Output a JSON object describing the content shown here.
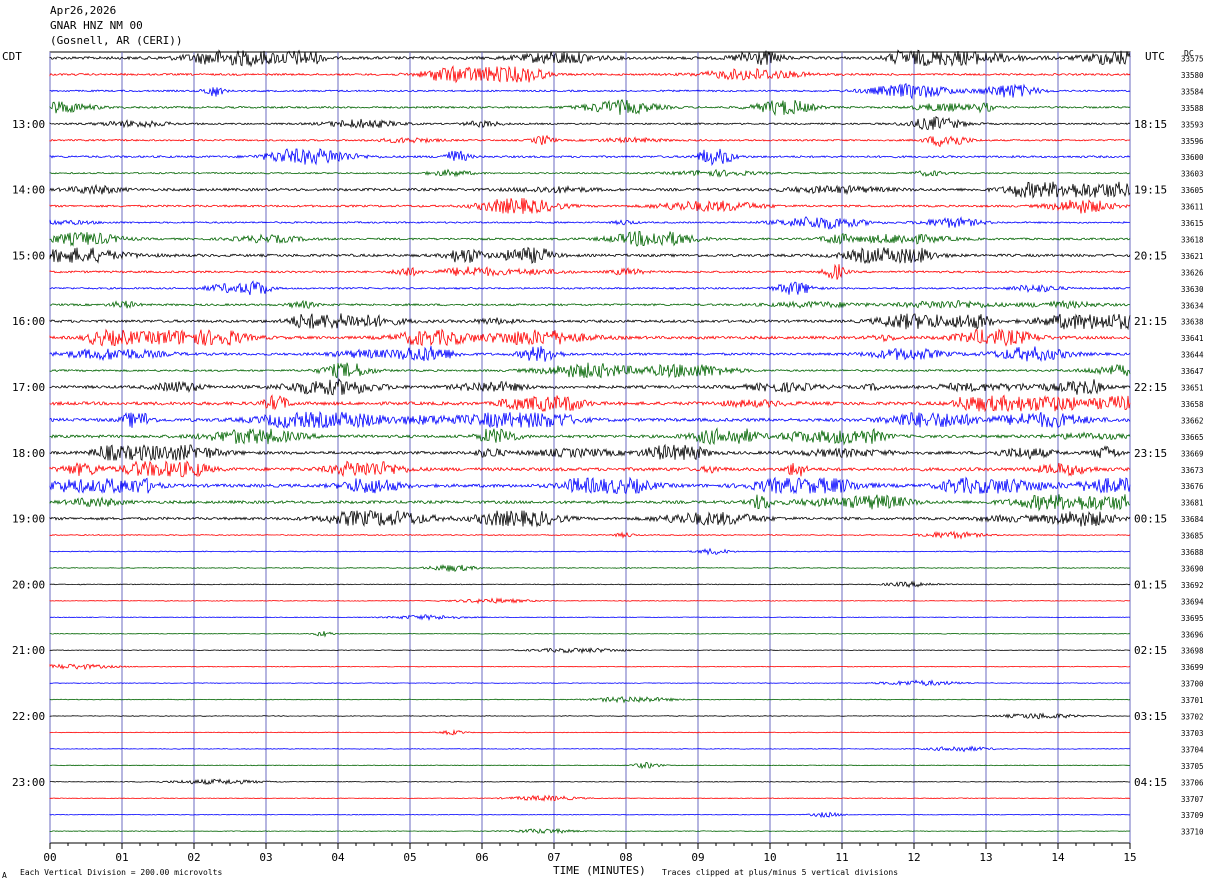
{
  "header": {
    "date": "Apr26,2026",
    "station": "GNAR HNZ NM 00",
    "location": "(Gosnell, AR (CERI))"
  },
  "left_label": "CDT",
  "right_label": "UTC",
  "right_top_label": "DC",
  "footer": {
    "scale": "Each Vertical Division =  200.00 microvolts",
    "xlabel": "TIME (MINUTES)",
    "clip": "Traces clipped at plus/minus 5 vertical divisions",
    "corner": "A"
  },
  "chart_data": {
    "type": "line",
    "xlabel": "TIME (MINUTES)",
    "xlim": [
      0,
      15
    ],
    "x_ticks": [
      "00",
      "01",
      "02",
      "03",
      "04",
      "05",
      "06",
      "07",
      "08",
      "09",
      "10",
      "11",
      "12",
      "13",
      "14",
      "15"
    ],
    "trace_colors": [
      "#000000",
      "#ff0000",
      "#0000ff",
      "#006400"
    ],
    "left_hours": [
      {
        "row": 4,
        "label": "13:00"
      },
      {
        "row": 8,
        "label": "14:00"
      },
      {
        "row": 12,
        "label": "15:00"
      },
      {
        "row": 16,
        "label": "16:00"
      },
      {
        "row": 20,
        "label": "17:00"
      },
      {
        "row": 24,
        "label": "18:00"
      },
      {
        "row": 28,
        "label": "19:00"
      },
      {
        "row": 32,
        "label": "20:00"
      },
      {
        "row": 36,
        "label": "21:00"
      },
      {
        "row": 40,
        "label": "22:00"
      },
      {
        "row": 44,
        "label": "23:00"
      }
    ],
    "right_hours": [
      {
        "row": 4,
        "label": "18:15"
      },
      {
        "row": 8,
        "label": "19:15"
      },
      {
        "row": 12,
        "label": "20:15"
      },
      {
        "row": 16,
        "label": "21:15"
      },
      {
        "row": 20,
        "label": "22:15"
      },
      {
        "row": 24,
        "label": "23:15"
      },
      {
        "row": 28,
        "label": "00:15"
      },
      {
        "row": 32,
        "label": "01:15"
      },
      {
        "row": 36,
        "label": "02:15"
      },
      {
        "row": 40,
        "label": "03:15"
      },
      {
        "row": 44,
        "label": "04:15"
      }
    ],
    "dc_offsets": [
      "33575",
      "33580",
      "33584",
      "33588",
      "33593",
      "33596",
      "33600",
      "33603",
      "33605",
      "33611",
      "33615",
      "33618",
      "33621",
      "33626",
      "33630",
      "33634",
      "33638",
      "33641",
      "33644",
      "33647",
      "33651",
      "33658",
      "33662",
      "33665",
      "33669",
      "33673",
      "33676",
      "33681",
      "33684",
      "33685",
      "33688",
      "33690",
      "33692",
      "33694",
      "33695",
      "33696",
      "33698",
      "33699",
      "33700",
      "33701",
      "33702",
      "33703",
      "33704",
      "33705",
      "33706",
      "33707",
      "33709",
      "33710"
    ],
    "activity": [
      2,
      1.2,
      1,
      1.2,
      1,
      1,
      1.3,
      0.8,
      1.8,
      1.3,
      1,
      1.3,
      1.8,
      1.3,
      1,
      1.3,
      1.8,
      2,
      1.6,
      1.2,
      2,
      2.3,
      2.3,
      2,
      2,
      2.3,
      2.3,
      2,
      1.8,
      0.5,
      0.3,
      0.3,
      0.3,
      0.2,
      0.2,
      0.2,
      0.2,
      0.2,
      0.2,
      0.2,
      0.2,
      0.2,
      0.2,
      0.2,
      0.2,
      0.2,
      0.2,
      0.2
    ]
  }
}
